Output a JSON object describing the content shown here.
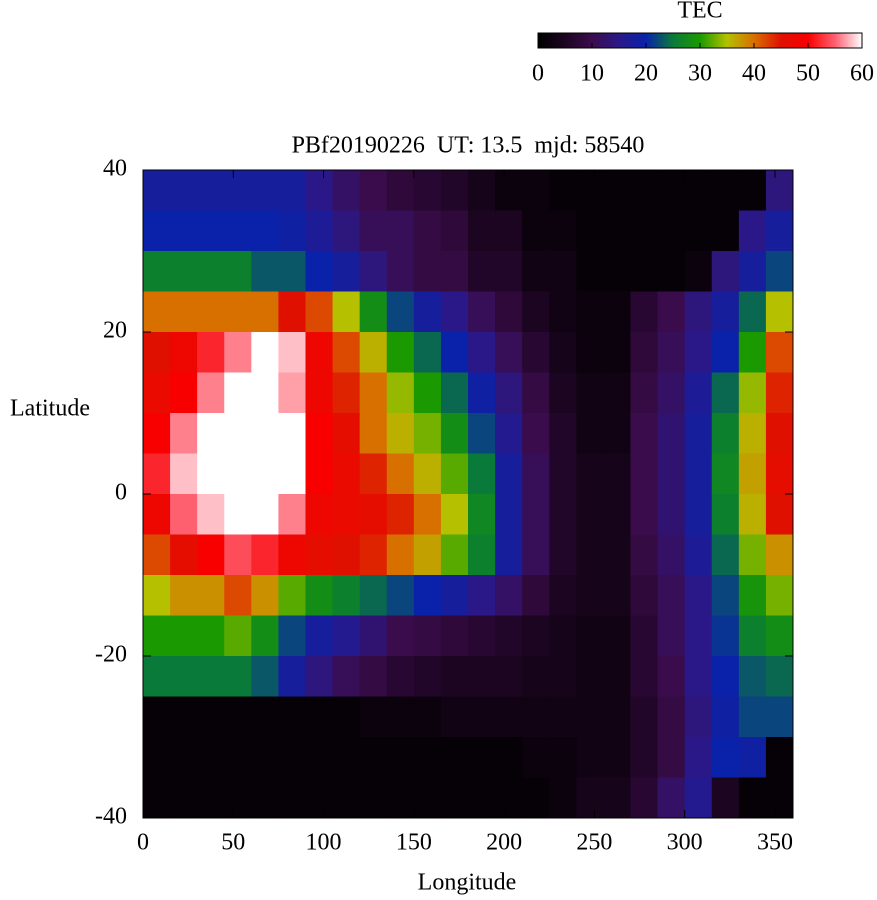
{
  "chart_data": {
    "type": "heatmap",
    "title": "PBf20190226  UT: 13.5  mjd: 58540",
    "x_label": "Longitude",
    "y_label": "Latitude",
    "colorbar_label": "TEC",
    "xlim": [
      0,
      360
    ],
    "xticks": [
      0,
      50,
      100,
      150,
      200,
      250,
      300,
      350
    ],
    "ylim": [
      -40,
      40
    ],
    "yticks": [
      -40,
      -20,
      0,
      20,
      40
    ],
    "zlim": [
      0,
      60
    ],
    "zticks": [
      0,
      10,
      20,
      30,
      40,
      50,
      60
    ],
    "colorscale": [
      "#000000",
      "#1c0520",
      "#3a0c4c",
      "#2a1888",
      "#0a22aa",
      "#0a7a3a",
      "#1a9a00",
      "#b4c000",
      "#d87000",
      "#e01000",
      "#f80000",
      "#ff6070",
      "#ffffff"
    ],
    "x": [
      7.5,
      22.5,
      37.5,
      52.5,
      67.5,
      82.5,
      97.5,
      112.5,
      127.5,
      142.5,
      157.5,
      172.5,
      187.5,
      202.5,
      217.5,
      232.5,
      247.5,
      262.5,
      277.5,
      292.5,
      307.5,
      322.5,
      337.5,
      352.5
    ],
    "y": [
      37.5,
      32.5,
      27.5,
      22.5,
      17.5,
      12.5,
      7.5,
      2.5,
      -2.5,
      -7.5,
      -12.5,
      -17.5,
      -22.5,
      -27.5,
      -32.5,
      -37.5
    ],
    "z": [
      [
        18,
        18,
        18,
        18,
        18,
        18,
        15,
        12,
        10,
        8,
        7,
        6,
        4,
        2,
        2,
        1,
        1,
        1,
        1,
        1,
        1,
        1,
        1,
        14
      ],
      [
        20,
        20,
        20,
        20,
        20,
        19,
        17,
        14,
        11,
        11,
        9,
        8,
        5,
        5,
        2,
        2,
        1,
        1,
        1,
        1,
        1,
        1,
        15,
        18
      ],
      [
        26,
        26,
        26,
        26,
        23,
        23,
        20,
        18,
        14,
        11,
        9,
        9,
        6,
        6,
        3,
        3,
        1,
        1,
        1,
        1,
        2,
        14,
        18,
        22
      ],
      [
        40,
        40,
        40,
        40,
        40,
        45,
        42,
        35,
        28,
        22,
        18,
        15,
        11,
        8,
        5,
        3,
        2,
        2,
        7,
        10,
        14,
        18,
        24,
        35
      ],
      [
        45,
        48,
        52,
        56,
        60,
        58,
        48,
        42,
        36,
        30,
        24,
        20,
        15,
        11,
        7,
        4,
        2,
        2,
        8,
        11,
        15,
        20,
        30,
        42
      ],
      [
        47,
        50,
        56,
        60,
        60,
        57,
        48,
        44,
        40,
        34,
        30,
        24,
        19,
        14,
        9,
        5,
        3,
        3,
        9,
        12,
        17,
        24,
        34,
        44
      ],
      [
        50,
        56,
        60,
        60,
        60,
        60,
        50,
        46,
        40,
        36,
        33,
        28,
        22,
        16,
        10,
        6,
        3,
        3,
        10,
        13,
        18,
        26,
        36,
        45
      ],
      [
        52,
        58,
        60,
        60,
        60,
        60,
        50,
        47,
        44,
        40,
        36,
        32,
        25,
        18,
        11,
        6,
        4,
        4,
        10,
        13,
        18,
        27,
        37,
        46
      ],
      [
        48,
        55,
        58,
        60,
        60,
        56,
        48,
        47,
        46,
        44,
        40,
        35,
        27,
        18,
        11,
        6,
        4,
        4,
        10,
        13,
        18,
        26,
        36,
        45
      ],
      [
        42,
        46,
        50,
        54,
        52,
        48,
        46,
        45,
        44,
        40,
        37,
        32,
        26,
        18,
        11,
        6,
        4,
        4,
        9,
        12,
        17,
        24,
        33,
        38
      ],
      [
        35,
        38,
        38,
        42,
        38,
        32,
        28,
        26,
        24,
        22,
        20,
        18,
        15,
        12,
        8,
        5,
        4,
        4,
        8,
        11,
        15,
        22,
        29,
        33
      ],
      [
        30,
        30,
        30,
        32,
        28,
        22,
        18,
        16,
        13,
        10,
        9,
        8,
        7,
        6,
        5,
        4,
        3,
        3,
        7,
        11,
        15,
        21,
        26,
        28
      ],
      [
        25,
        25,
        25,
        25,
        23,
        18,
        14,
        11,
        9,
        7,
        6,
        5,
        5,
        5,
        4,
        4,
        3,
        3,
        7,
        10,
        15,
        20,
        23,
        24
      ],
      [
        1,
        1,
        1,
        1,
        1,
        1,
        1,
        1,
        2,
        2,
        2,
        3,
        3,
        3,
        3,
        3,
        3,
        3,
        6,
        9,
        14,
        19,
        22,
        22
      ],
      [
        1,
        1,
        1,
        1,
        1,
        1,
        1,
        1,
        1,
        1,
        1,
        1,
        1,
        1,
        2,
        2,
        3,
        3,
        6,
        9,
        15,
        20,
        19,
        1
      ],
      [
        1,
        1,
        1,
        1,
        1,
        1,
        1,
        1,
        1,
        1,
        1,
        1,
        1,
        1,
        1,
        2,
        4,
        4,
        7,
        12,
        16,
        5,
        1,
        1
      ]
    ]
  }
}
